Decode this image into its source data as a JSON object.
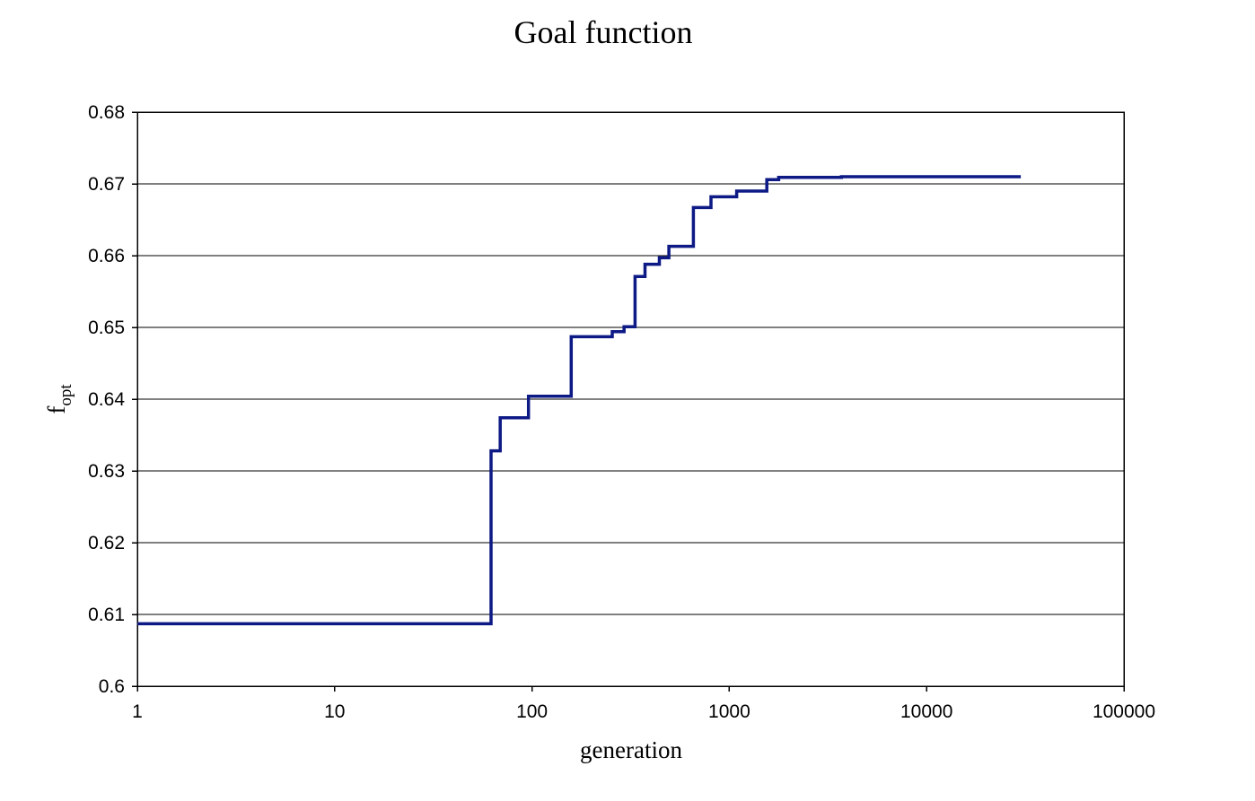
{
  "chart_data": {
    "type": "line",
    "title": "Goal function",
    "xlabel": "generation",
    "ylabel_main": "f",
    "ylabel_sub": "opt",
    "x_scale": "log",
    "xlim": [
      1,
      100000
    ],
    "ylim": [
      0.6,
      0.68
    ],
    "x_ticks": [
      1,
      10,
      100,
      1000,
      10000,
      100000
    ],
    "x_tick_labels": [
      "1",
      "10",
      "100",
      "1000",
      "10000",
      "100000"
    ],
    "y_ticks": [
      0.6,
      0.61,
      0.62,
      0.63,
      0.64,
      0.65,
      0.66,
      0.67,
      0.68
    ],
    "y_tick_labels": [
      "0.6",
      "0.61",
      "0.62",
      "0.63",
      "0.64",
      "0.65",
      "0.66",
      "0.67",
      "0.68"
    ],
    "grid": "horizontal",
    "step": true,
    "series_color": "#0d1a85",
    "series": [
      {
        "x": [
          1,
          62,
          69,
          96,
          158,
          255,
          293,
          333,
          374,
          442,
          494,
          658,
          808,
          1090,
          1550,
          1780,
          3700,
          30000
        ],
        "y": [
          0.6087,
          0.6328,
          0.6374,
          0.6404,
          0.6487,
          0.6494,
          0.6501,
          0.6571,
          0.6588,
          0.6597,
          0.6613,
          0.6667,
          0.6682,
          0.669,
          0.6706,
          0.6709,
          0.671,
          0.671
        ]
      }
    ]
  }
}
